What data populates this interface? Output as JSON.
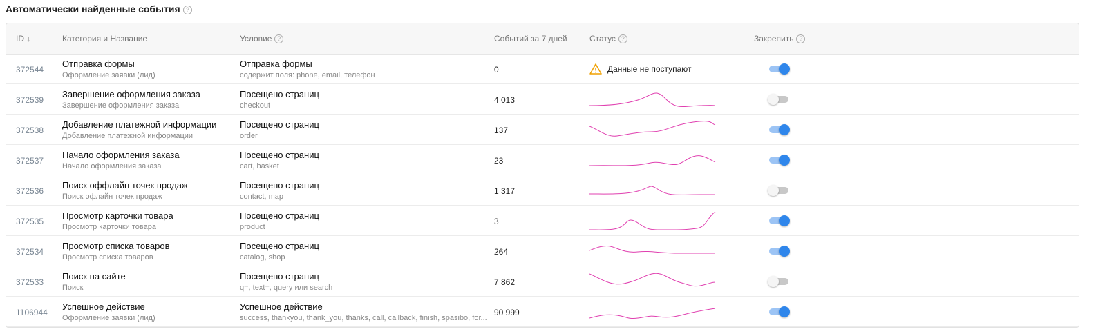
{
  "header": {
    "title": "Автоматически найденные события"
  },
  "table": {
    "columns": [
      "ID",
      "Категория и Название",
      "Условие",
      "Событий за 7 дней",
      "Статус",
      "Закрепить"
    ],
    "rows": [
      {
        "id": "372544",
        "name": "Отправка формы",
        "category": "Оформление заявки (лид)",
        "condition": "Отправка формы",
        "condition_detail": "содержит поля: phone, email, телефон",
        "events": "0",
        "status": "Данные не поступают",
        "pinned": true
      },
      {
        "id": "372539",
        "name": "Завершение оформления заказа",
        "category": "Завершение оформления заказа",
        "condition": "Посещено страниц",
        "condition_detail": "checkout",
        "events": "4 013",
        "pinned": false
      },
      {
        "id": "372538",
        "name": "Добавление платежной информации",
        "category": "Добавление платежной информации",
        "condition": "Посещено страниц",
        "condition_detail": "order",
        "events": "137",
        "pinned": true
      },
      {
        "id": "372537",
        "name": "Начало оформления заказа",
        "category": "Начало оформления заказа",
        "condition": "Посещено страниц",
        "condition_detail": "cart, basket",
        "events": "23",
        "pinned": true
      },
      {
        "id": "372536",
        "name": "Поиск оффлайн точек продаж",
        "category": "Поиск офлайн точек продаж",
        "condition": "Посещено страниц",
        "condition_detail": "contact, map",
        "events": "1 317",
        "pinned": false
      },
      {
        "id": "372535",
        "name": "Просмотр карточки товара",
        "category": "Просмотр карточки товара",
        "condition": "Посещено страниц",
        "condition_detail": "product",
        "events": "3",
        "pinned": true
      },
      {
        "id": "372534",
        "name": "Просмотр списка товаров",
        "category": "Просмотр списка товаров",
        "condition": "Посещено страниц",
        "condition_detail": "catalog, shop",
        "events": "264",
        "pinned": true
      },
      {
        "id": "372533",
        "name": "Поиск на сайте",
        "category": "Поиск",
        "condition": "Посещено страниц",
        "condition_detail": "q=, text=, query или search",
        "events": "7 862",
        "pinned": false
      },
      {
        "id": "1106944",
        "name": "Успешное действие",
        "category": "Оформление заявки (лид)",
        "condition": "Успешное действие",
        "condition_detail": "success, thankyou, thank_you, thanks, call, callback, finish, spasibo, for...",
        "events": "90 999",
        "pinned": true
      }
    ]
  }
}
